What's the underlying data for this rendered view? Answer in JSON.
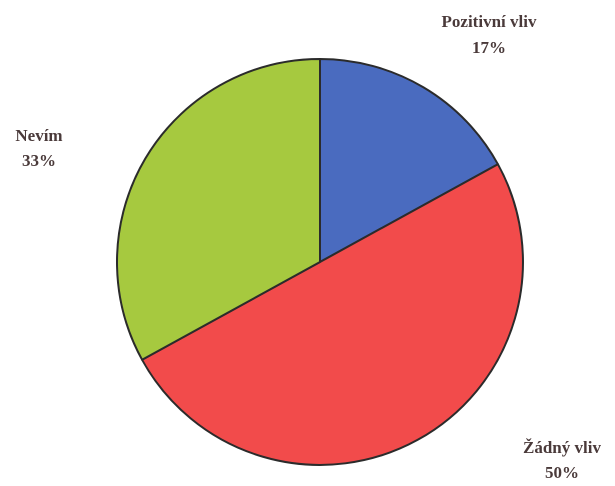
{
  "chart_data": {
    "type": "pie",
    "slices": [
      {
        "label": "Pozitivní vliv",
        "value": 17,
        "value_label": "17%",
        "color": "#4a6bbf"
      },
      {
        "label": "Žádný vliv",
        "value": 50,
        "value_label": "50%",
        "color": "#f24b4b"
      },
      {
        "label": "Nevím",
        "value": 33,
        "value_label": "33%",
        "color": "#a6c93f"
      }
    ],
    "start": "12 o'clock",
    "direction": "clockwise",
    "edge_color": "#2b2b2b",
    "label_color": "#4a3a3a"
  }
}
